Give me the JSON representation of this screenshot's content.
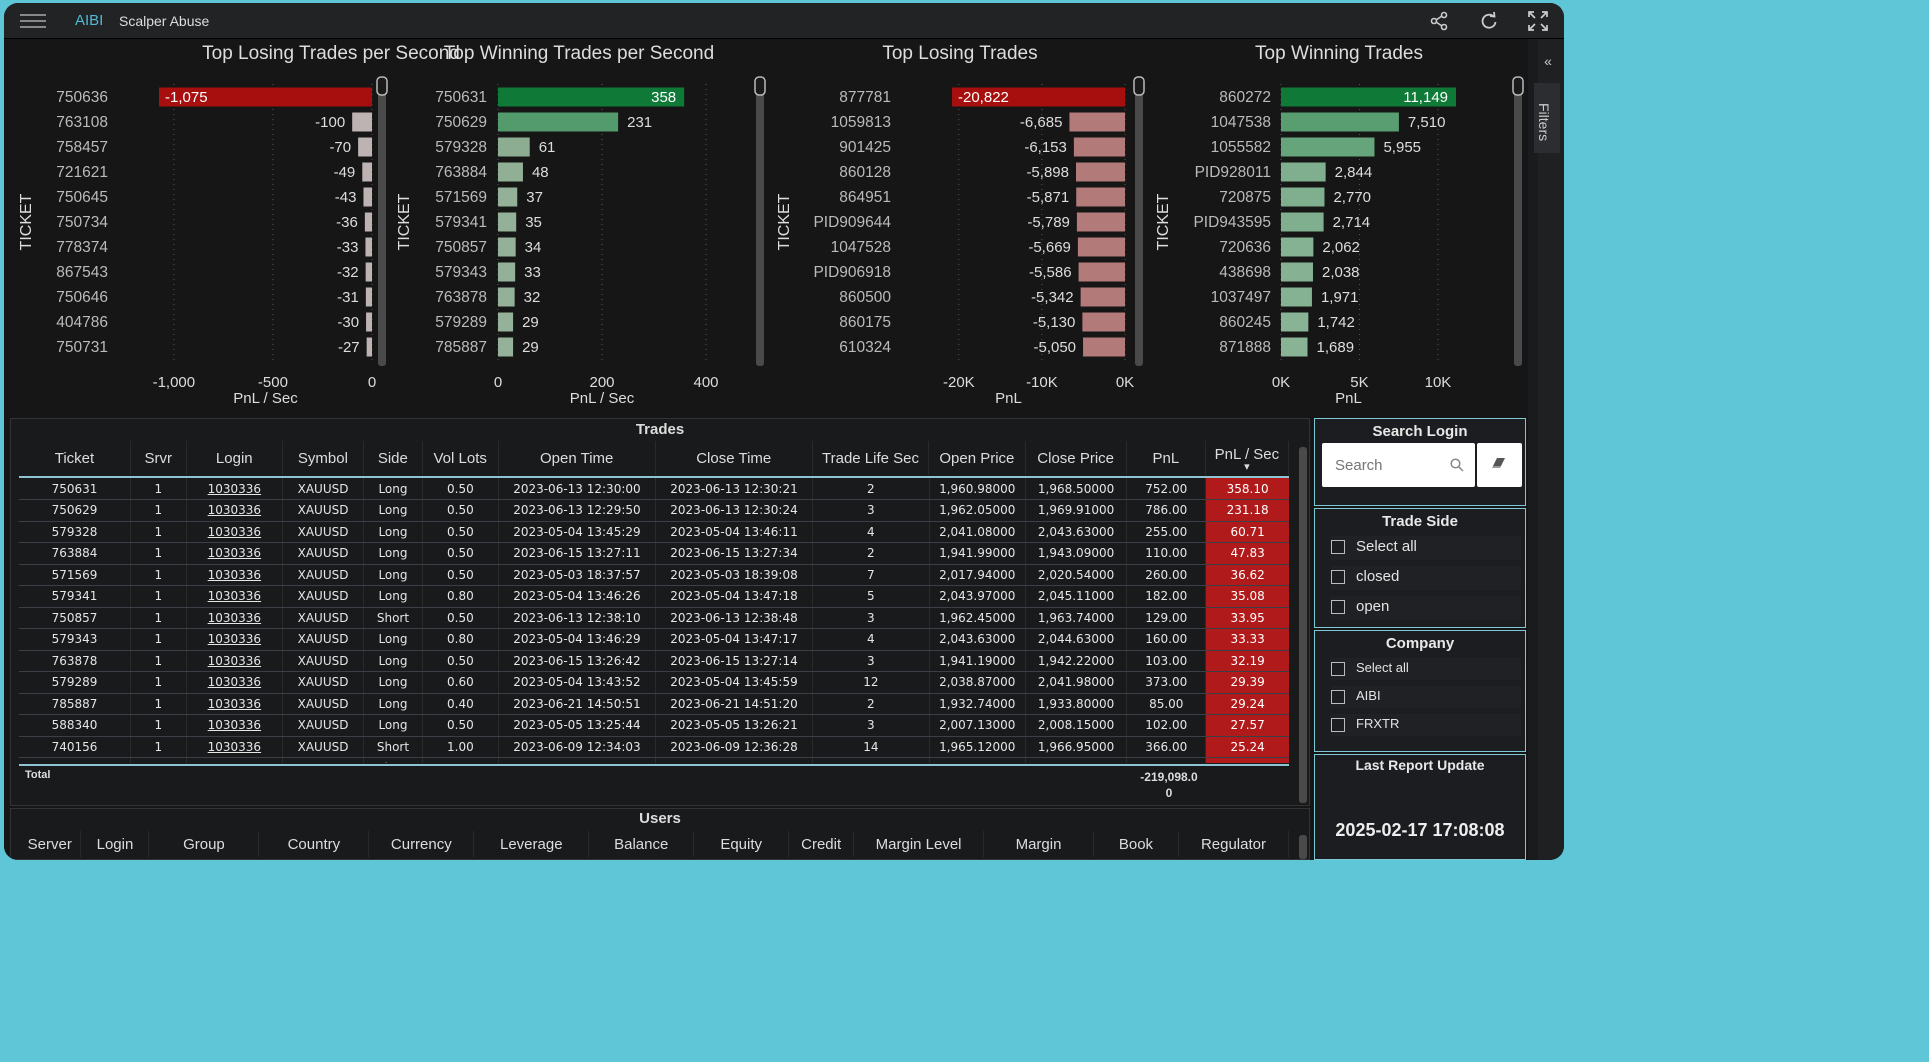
{
  "app": {
    "brand": "AIBI",
    "title": "Scalper Abuse"
  },
  "toolbar": {
    "share_icon": "share-icon",
    "refresh_icon": "refresh-icon",
    "fullscreen_icon": "fullscreen-icon"
  },
  "sidebar": {
    "filters_label": "Filters"
  },
  "charts": [
    {
      "type": "bar",
      "title": "Top Losing Trades per Second",
      "ylabel": "TICKET",
      "xlabel": "PnL / Sec",
      "categories": [
        "750636",
        "763108",
        "758457",
        "721621",
        "750645",
        "750734",
        "778374",
        "867543",
        "750646",
        "404786",
        "750731"
      ],
      "values": [
        -1075,
        -100,
        -70,
        -49,
        -43,
        -36,
        -33,
        -32,
        -31,
        -30,
        -27
      ],
      "labels": [
        "-1,075",
        "-100",
        "-70",
        "-49",
        "-43",
        "-36",
        "-33",
        "-32",
        "-31",
        "-30",
        "-27"
      ],
      "xlim": [
        -1075,
        0
      ],
      "ticks": [
        {
          "v": -1000,
          "t": "-1,000"
        },
        {
          "v": -500,
          "t": "-500"
        },
        {
          "v": 0,
          "t": "0"
        }
      ]
    },
    {
      "type": "bar",
      "title": "Top Winning Trades per Second",
      "ylabel": "TICKET",
      "xlabel": "PnL / Sec",
      "categories": [
        "750631",
        "750629",
        "579328",
        "763884",
        "571569",
        "579341",
        "750857",
        "579343",
        "763878",
        "579289",
        "785887"
      ],
      "values": [
        358,
        231,
        61,
        48,
        37,
        35,
        34,
        33,
        32,
        29,
        29
      ],
      "labels": [
        "358",
        "231",
        "61",
        "48",
        "37",
        "35",
        "34",
        "33",
        "32",
        "29",
        "29"
      ],
      "xlim": [
        0,
        400
      ],
      "ticks": [
        {
          "v": 0,
          "t": "0"
        },
        {
          "v": 200,
          "t": "200"
        },
        {
          "v": 400,
          "t": "400"
        }
      ]
    },
    {
      "type": "bar",
      "title": "Top Losing Trades",
      "ylabel": "TICKET",
      "xlabel": "PnL",
      "categories": [
        "877781",
        "1059813",
        "901425",
        "860128",
        "864951",
        "PID909644",
        "1047528",
        "PID906918",
        "860500",
        "860175",
        "610324"
      ],
      "values": [
        -20822,
        -6685,
        -6153,
        -5898,
        -5871,
        -5789,
        -5669,
        -5586,
        -5342,
        -5130,
        -5050
      ],
      "labels": [
        "-20,822",
        "-6,685",
        "-6,153",
        "-5,898",
        "-5,871",
        "-5,789",
        "-5,669",
        "-5,586",
        "-5,342",
        "-5,130",
        "-5,050"
      ],
      "xlim": [
        -20822,
        0
      ],
      "ticks": [
        {
          "v": -20000,
          "t": "-20K"
        },
        {
          "v": -10000,
          "t": "-10K"
        },
        {
          "v": 0,
          "t": "0K"
        }
      ]
    },
    {
      "type": "bar",
      "title": "Top Winning Trades",
      "ylabel": "TICKET",
      "xlabel": "PnL",
      "categories": [
        "860272",
        "1047538",
        "1055582",
        "PID928011",
        "720875",
        "PID943595",
        "720636",
        "438698",
        "1037497",
        "860245",
        "871888"
      ],
      "values": [
        11149,
        7510,
        5955,
        2844,
        2770,
        2714,
        2062,
        2038,
        1971,
        1742,
        1689
      ],
      "labels": [
        "11,149",
        "7,510",
        "5,955",
        "2,844",
        "2,770",
        "2,714",
        "2,062",
        "2,038",
        "1,971",
        "1,742",
        "1,689"
      ],
      "xlim": [
        0,
        11149
      ],
      "ticks": [
        {
          "v": 0,
          "t": "0K"
        },
        {
          "v": 5000,
          "t": "5K"
        },
        {
          "v": 10000,
          "t": "10K"
        }
      ]
    }
  ],
  "trades": {
    "title": "Trades",
    "columns": [
      "Ticket",
      "Srvr",
      "Login",
      "Symbol",
      "Side",
      "Vol Lots",
      "Open Time",
      "Close Time",
      "Trade Life Sec",
      "Open Price",
      "Close Price",
      "PnL",
      "PnL / Sec"
    ],
    "rows": [
      [
        "750631",
        "1",
        "1030336",
        "XAUUSD",
        "Long",
        "0.50",
        "2023-06-13 12:30:00",
        "2023-06-13 12:30:21",
        "2",
        "1,960.98000",
        "1,968.50000",
        "752.00",
        "358.10"
      ],
      [
        "750629",
        "1",
        "1030336",
        "XAUUSD",
        "Long",
        "0.50",
        "2023-06-13 12:29:50",
        "2023-06-13 12:30:24",
        "3",
        "1,962.05000",
        "1,969.91000",
        "786.00",
        "231.18"
      ],
      [
        "579328",
        "1",
        "1030336",
        "XAUUSD",
        "Long",
        "0.50",
        "2023-05-04 13:45:29",
        "2023-05-04 13:46:11",
        "4",
        "2,041.08000",
        "2,043.63000",
        "255.00",
        "60.71"
      ],
      [
        "763884",
        "1",
        "1030336",
        "XAUUSD",
        "Long",
        "0.50",
        "2023-06-15 13:27:11",
        "2023-06-15 13:27:34",
        "2",
        "1,941.99000",
        "1,943.09000",
        "110.00",
        "47.83"
      ],
      [
        "571569",
        "1",
        "1030336",
        "XAUUSD",
        "Long",
        "0.50",
        "2023-05-03 18:37:57",
        "2023-05-03 18:39:08",
        "7",
        "2,017.94000",
        "2,020.54000",
        "260.00",
        "36.62"
      ],
      [
        "579341",
        "1",
        "1030336",
        "XAUUSD",
        "Long",
        "0.80",
        "2023-05-04 13:46:26",
        "2023-05-04 13:47:18",
        "5",
        "2,043.97000",
        "2,045.11000",
        "182.00",
        "35.08"
      ],
      [
        "750857",
        "1",
        "1030336",
        "XAUUSD",
        "Short",
        "0.50",
        "2023-06-13 12:38:10",
        "2023-06-13 12:38:48",
        "3",
        "1,962.45000",
        "1,963.74000",
        "129.00",
        "33.95"
      ],
      [
        "579343",
        "1",
        "1030336",
        "XAUUSD",
        "Long",
        "0.80",
        "2023-05-04 13:46:29",
        "2023-05-04 13:47:17",
        "4",
        "2,043.63000",
        "2,044.63000",
        "160.00",
        "33.33"
      ],
      [
        "763878",
        "1",
        "1030336",
        "XAUUSD",
        "Long",
        "0.50",
        "2023-06-15 13:26:42",
        "2023-06-15 13:27:14",
        "3",
        "1,941.19000",
        "1,942.22000",
        "103.00",
        "32.19"
      ],
      [
        "579289",
        "1",
        "1030336",
        "XAUUSD",
        "Long",
        "0.60",
        "2023-05-04 13:43:52",
        "2023-05-04 13:45:59",
        "12",
        "2,038.87000",
        "2,041.98000",
        "373.00",
        "29.39"
      ],
      [
        "785887",
        "1",
        "1030336",
        "XAUUSD",
        "Long",
        "0.40",
        "2023-06-21 14:50:51",
        "2023-06-21 14:51:20",
        "2",
        "1,932.74000",
        "1,933.80000",
        "85.00",
        "29.24"
      ],
      [
        "588340",
        "1",
        "1030336",
        "XAUUSD",
        "Long",
        "0.50",
        "2023-05-05 13:25:44",
        "2023-05-05 13:26:21",
        "3",
        "2,007.13000",
        "2,008.15000",
        "102.00",
        "27.57"
      ],
      [
        "740156",
        "1",
        "1030336",
        "XAUUSD",
        "Short",
        "1.00",
        "2023-06-09 12:34:03",
        "2023-06-09 12:36:28",
        "14",
        "1,965.12000",
        "1,966.95000",
        "366.00",
        "25.24"
      ]
    ],
    "total_label": "Total",
    "total_pnl_line1": "-219,098.0",
    "total_pnl_line2": "0"
  },
  "users": {
    "title": "Users",
    "columns": [
      "Server",
      "Login",
      "Group",
      "Country",
      "Currency",
      "Leverage",
      "Balance",
      "Equity",
      "Credit",
      "Margin Level",
      "Margin",
      "Book",
      "Regulator"
    ]
  },
  "filters": {
    "search_login": {
      "title": "Search Login",
      "placeholder": "Search"
    },
    "trade_side": {
      "title": "Trade Side",
      "options": [
        "Select all",
        "closed",
        "open"
      ]
    },
    "company": {
      "title": "Company",
      "options": [
        "Select all",
        "AIBI",
        "FRXTR"
      ]
    },
    "last_update": {
      "title": "Last Report Update",
      "value": "2025-02-17 17:08:08"
    }
  },
  "colors": {
    "loss_red": "#a70f0f",
    "win_green": "#0f7a38",
    "pnl_cell": "#b11a1a",
    "accent": "#4fb8d4"
  }
}
